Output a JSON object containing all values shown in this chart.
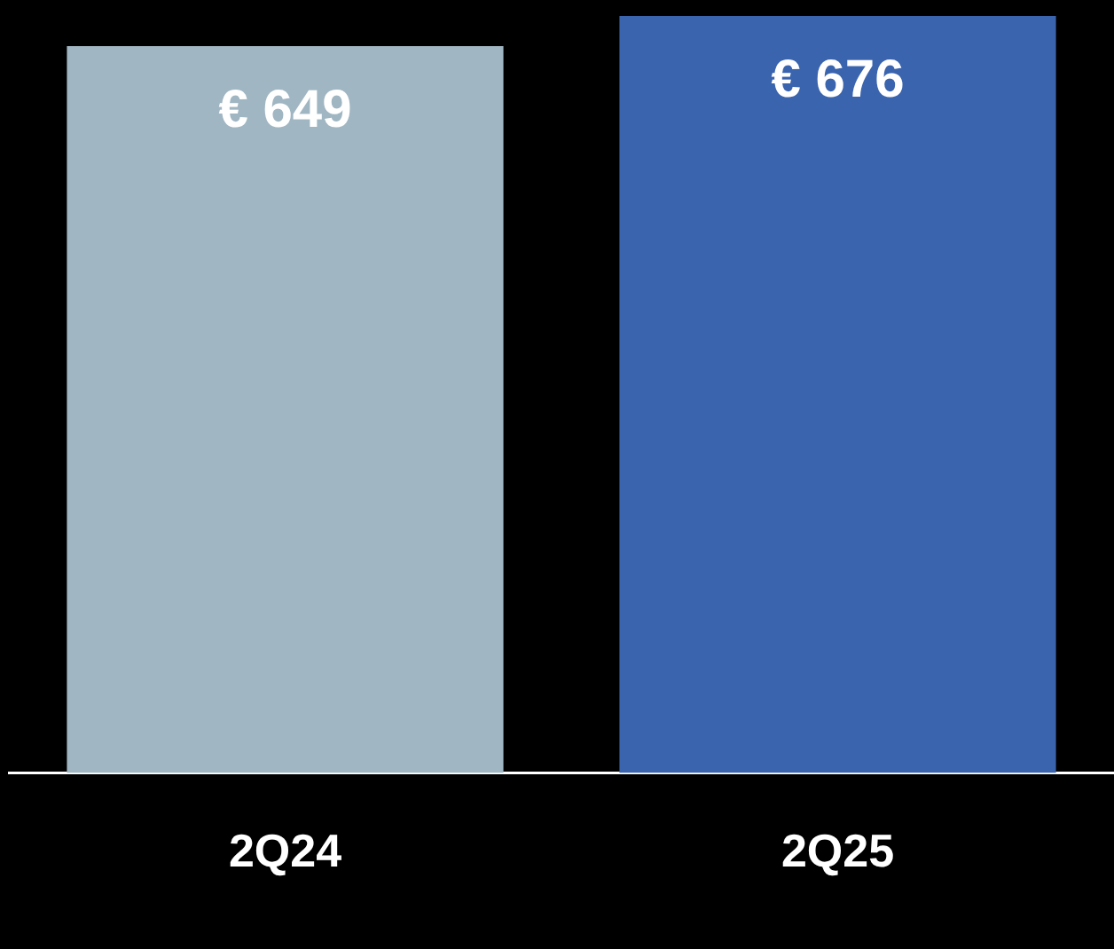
{
  "chart_data": {
    "type": "bar",
    "categories": [
      "2Q24",
      "2Q25"
    ],
    "values": [
      649,
      676
    ],
    "colors": [
      "#a0b6c2",
      "#3a64ae"
    ],
    "value_labels": [
      "€ 649",
      "€ 676"
    ],
    "grid": false,
    "legend": false,
    "tick_labels": "x"
  }
}
